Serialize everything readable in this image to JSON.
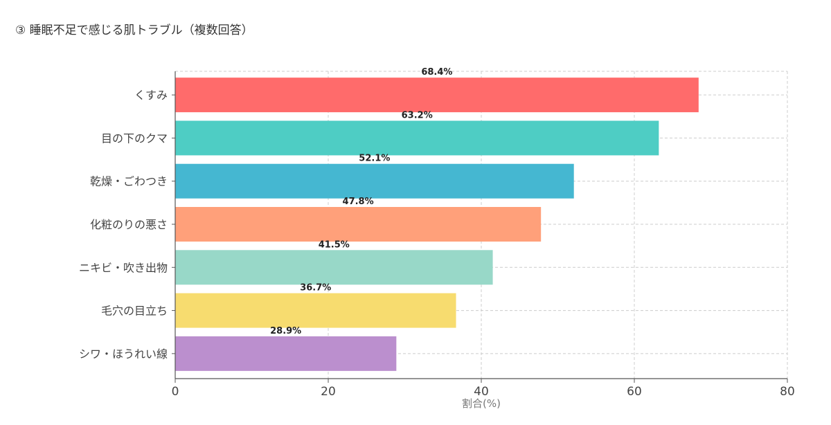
{
  "chart_data": {
    "type": "bar",
    "orientation": "horizontal",
    "title": "③ 睡眠不足で感じる肌トラブル（複数回答）",
    "xlabel": "割合(%)",
    "ylabel": "",
    "xlim": [
      0,
      80
    ],
    "xticks": [
      0,
      20,
      40,
      60,
      80
    ],
    "grid": true,
    "categories": [
      "くすみ",
      "目の下のクマ",
      "乾燥・ごわつき",
      "化粧のりの悪さ",
      "ニキビ・吹き出物",
      "毛穴の目立ち",
      "シワ・ほうれい線"
    ],
    "values": [
      68.4,
      63.2,
      52.1,
      47.8,
      41.5,
      36.7,
      28.9
    ],
    "data_labels": [
      "68.4%",
      "63.2%",
      "52.1%",
      "47.8%",
      "41.5%",
      "36.7%",
      "28.9%"
    ],
    "colors": [
      "#FF6B6B",
      "#4ECDC4",
      "#45B7D1",
      "#FFA07A",
      "#98D8C8",
      "#F7DC6F",
      "#BB8FCE"
    ]
  }
}
